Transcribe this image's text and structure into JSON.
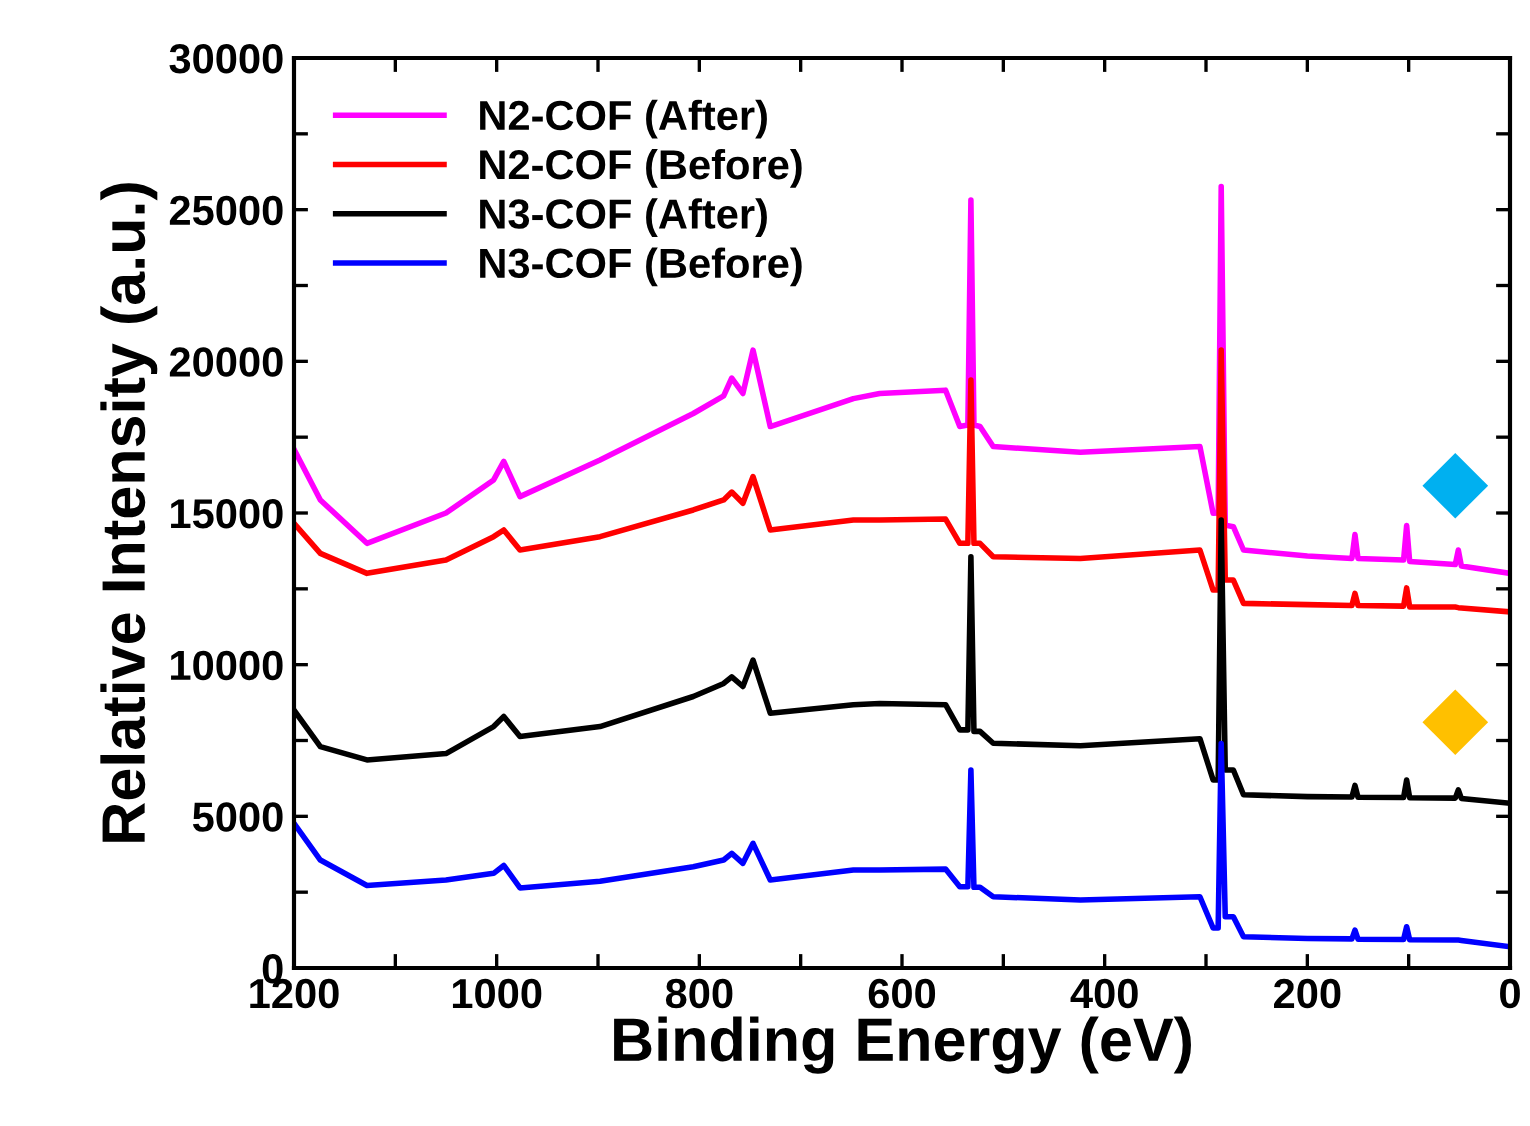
{
  "chart_data": {
    "type": "line",
    "xlabel": "Binding Energy (eV)",
    "ylabel": "Relative Intensity (a.u.)",
    "x": [
      1200,
      1174,
      1128,
      1050,
      1003,
      993,
      977,
      898,
      806,
      776,
      768,
      757,
      747,
      730,
      648,
      622,
      557,
      543,
      535,
      532,
      529,
      523,
      510,
      424,
      306,
      293,
      288,
      285,
      281,
      273,
      263,
      200,
      156,
      153,
      150,
      105,
      102,
      99,
      54,
      51,
      48,
      0
    ],
    "series": [
      {
        "name": "N2-COF (After)",
        "color": "#ff00ff",
        "values": [
          17100,
          15430,
          14000,
          15000,
          16090,
          16700,
          15540,
          16750,
          18280,
          18860,
          19450,
          18940,
          20370,
          17850,
          18770,
          18940,
          19050,
          17850,
          17900,
          25320,
          17900,
          17850,
          17190,
          17000,
          17190,
          14990,
          15000,
          25760,
          14600,
          14550,
          13780,
          13580,
          13500,
          14290,
          13500,
          13450,
          14590,
          13400,
          13300,
          13780,
          13250,
          13010
        ]
      },
      {
        "name": "N2-COF (Before)",
        "color": "#ff0000",
        "values": [
          14660,
          13670,
          13010,
          13450,
          14220,
          14440,
          13780,
          14220,
          15100,
          15430,
          15690,
          15320,
          16200,
          14440,
          14770,
          14770,
          14800,
          14000,
          14000,
          19380,
          14000,
          14000,
          13560,
          13500,
          13780,
          12460,
          12460,
          20370,
          12790,
          12790,
          12020,
          11980,
          11950,
          12350,
          11950,
          11930,
          12530,
          11900,
          11900,
          11880,
          11870,
          11740
        ]
      },
      {
        "name": "N3-COF (After)",
        "color": "#000000",
        "values": [
          8500,
          7300,
          6860,
          7070,
          7960,
          8290,
          7630,
          7960,
          8950,
          9380,
          9600,
          9280,
          10150,
          8400,
          8680,
          8720,
          8680,
          7850,
          7850,
          13560,
          7800,
          7800,
          7410,
          7330,
          7560,
          6200,
          6200,
          14770,
          6530,
          6530,
          5710,
          5650,
          5640,
          6020,
          5630,
          5620,
          6200,
          5610,
          5600,
          5870,
          5590,
          5430
        ]
      },
      {
        "name": "N3-COF (Before)",
        "color": "#0000ff",
        "values": [
          4770,
          3560,
          2720,
          2900,
          3120,
          3380,
          2640,
          2860,
          3340,
          3560,
          3780,
          3450,
          4110,
          2900,
          3230,
          3230,
          3260,
          2680,
          2680,
          6530,
          2660,
          2660,
          2350,
          2240,
          2350,
          1320,
          1320,
          7400,
          1690,
          1690,
          1030,
          970,
          960,
          1250,
          950,
          940,
          1360,
          930,
          920,
          920,
          910,
          700
        ]
      }
    ],
    "xlim": [
      1200,
      0
    ],
    "ylim": [
      0,
      30000
    ],
    "xticks": [
      1200,
      {
        "value": 1100,
        "label": null
      },
      1000,
      {
        "value": 900,
        "label": null
      },
      800,
      {
        "value": 700,
        "label": null
      },
      600,
      {
        "value": 500,
        "label": null
      },
      400,
      {
        "value": 300,
        "label": null
      },
      200,
      {
        "value": 100,
        "label": null
      },
      0
    ],
    "yticks": [
      0,
      {
        "value": 2500,
        "label": null
      },
      5000,
      {
        "value": 7500,
        "label": null
      },
      10000,
      {
        "value": 12500,
        "label": null
      },
      15000,
      {
        "value": 17500,
        "label": null
      },
      20000,
      {
        "value": 22500,
        "label": null
      },
      25000,
      {
        "value": 27500,
        "label": null
      },
      30000
    ],
    "legend": "top left",
    "grid": false,
    "marker": "none",
    "line_style": "solid"
  }
}
